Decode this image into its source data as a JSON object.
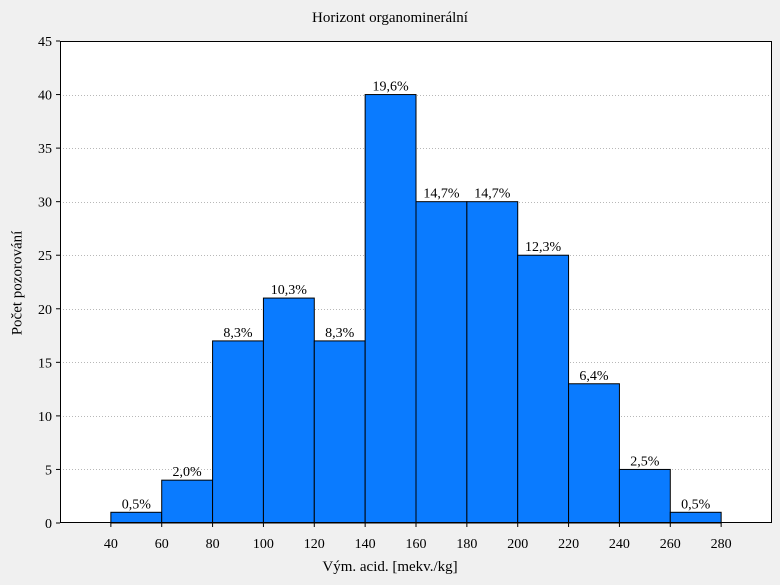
{
  "chart_data": {
    "type": "bar",
    "title": "Horizont organominerální",
    "xlabel": "Vým. acid. [mekv./kg]",
    "ylabel": "Počet pozorování",
    "xlim": [
      20,
      300
    ],
    "ylim": [
      0,
      45
    ],
    "x_ticks": [
      "40",
      "60",
      "80",
      "100",
      "120",
      "140",
      "160",
      "180",
      "200",
      "220",
      "240",
      "260",
      "280"
    ],
    "y_ticks": [
      "0",
      "5",
      "10",
      "15",
      "20",
      "25",
      "30",
      "35",
      "40",
      "45"
    ],
    "bin_width": 20,
    "bins": [
      {
        "start": 40,
        "end": 60,
        "value": 1,
        "label": "0,5%"
      },
      {
        "start": 60,
        "end": 80,
        "value": 4,
        "label": "2,0%"
      },
      {
        "start": 80,
        "end": 100,
        "value": 17,
        "label": "8,3%"
      },
      {
        "start": 100,
        "end": 120,
        "value": 21,
        "label": "10,3%"
      },
      {
        "start": 120,
        "end": 140,
        "value": 17,
        "label": "8,3%"
      },
      {
        "start": 140,
        "end": 160,
        "value": 40,
        "label": "19,6%"
      },
      {
        "start": 160,
        "end": 180,
        "value": 30,
        "label": "14,7%"
      },
      {
        "start": 180,
        "end": 200,
        "value": 30,
        "label": "14,7%"
      },
      {
        "start": 200,
        "end": 220,
        "value": 25,
        "label": "12,3%"
      },
      {
        "start": 220,
        "end": 240,
        "value": 13,
        "label": "6,4%"
      },
      {
        "start": 240,
        "end": 260,
        "value": 5,
        "label": "2,5%"
      },
      {
        "start": 260,
        "end": 280,
        "value": 1,
        "label": "0,5%"
      }
    ],
    "grid": true,
    "colors": {
      "bar_fill": "#0a7bff",
      "bar_stroke": "#000000",
      "grid": "#b8b8b8",
      "background": "#f0f0f0",
      "plot_background": "#ffffff"
    }
  }
}
